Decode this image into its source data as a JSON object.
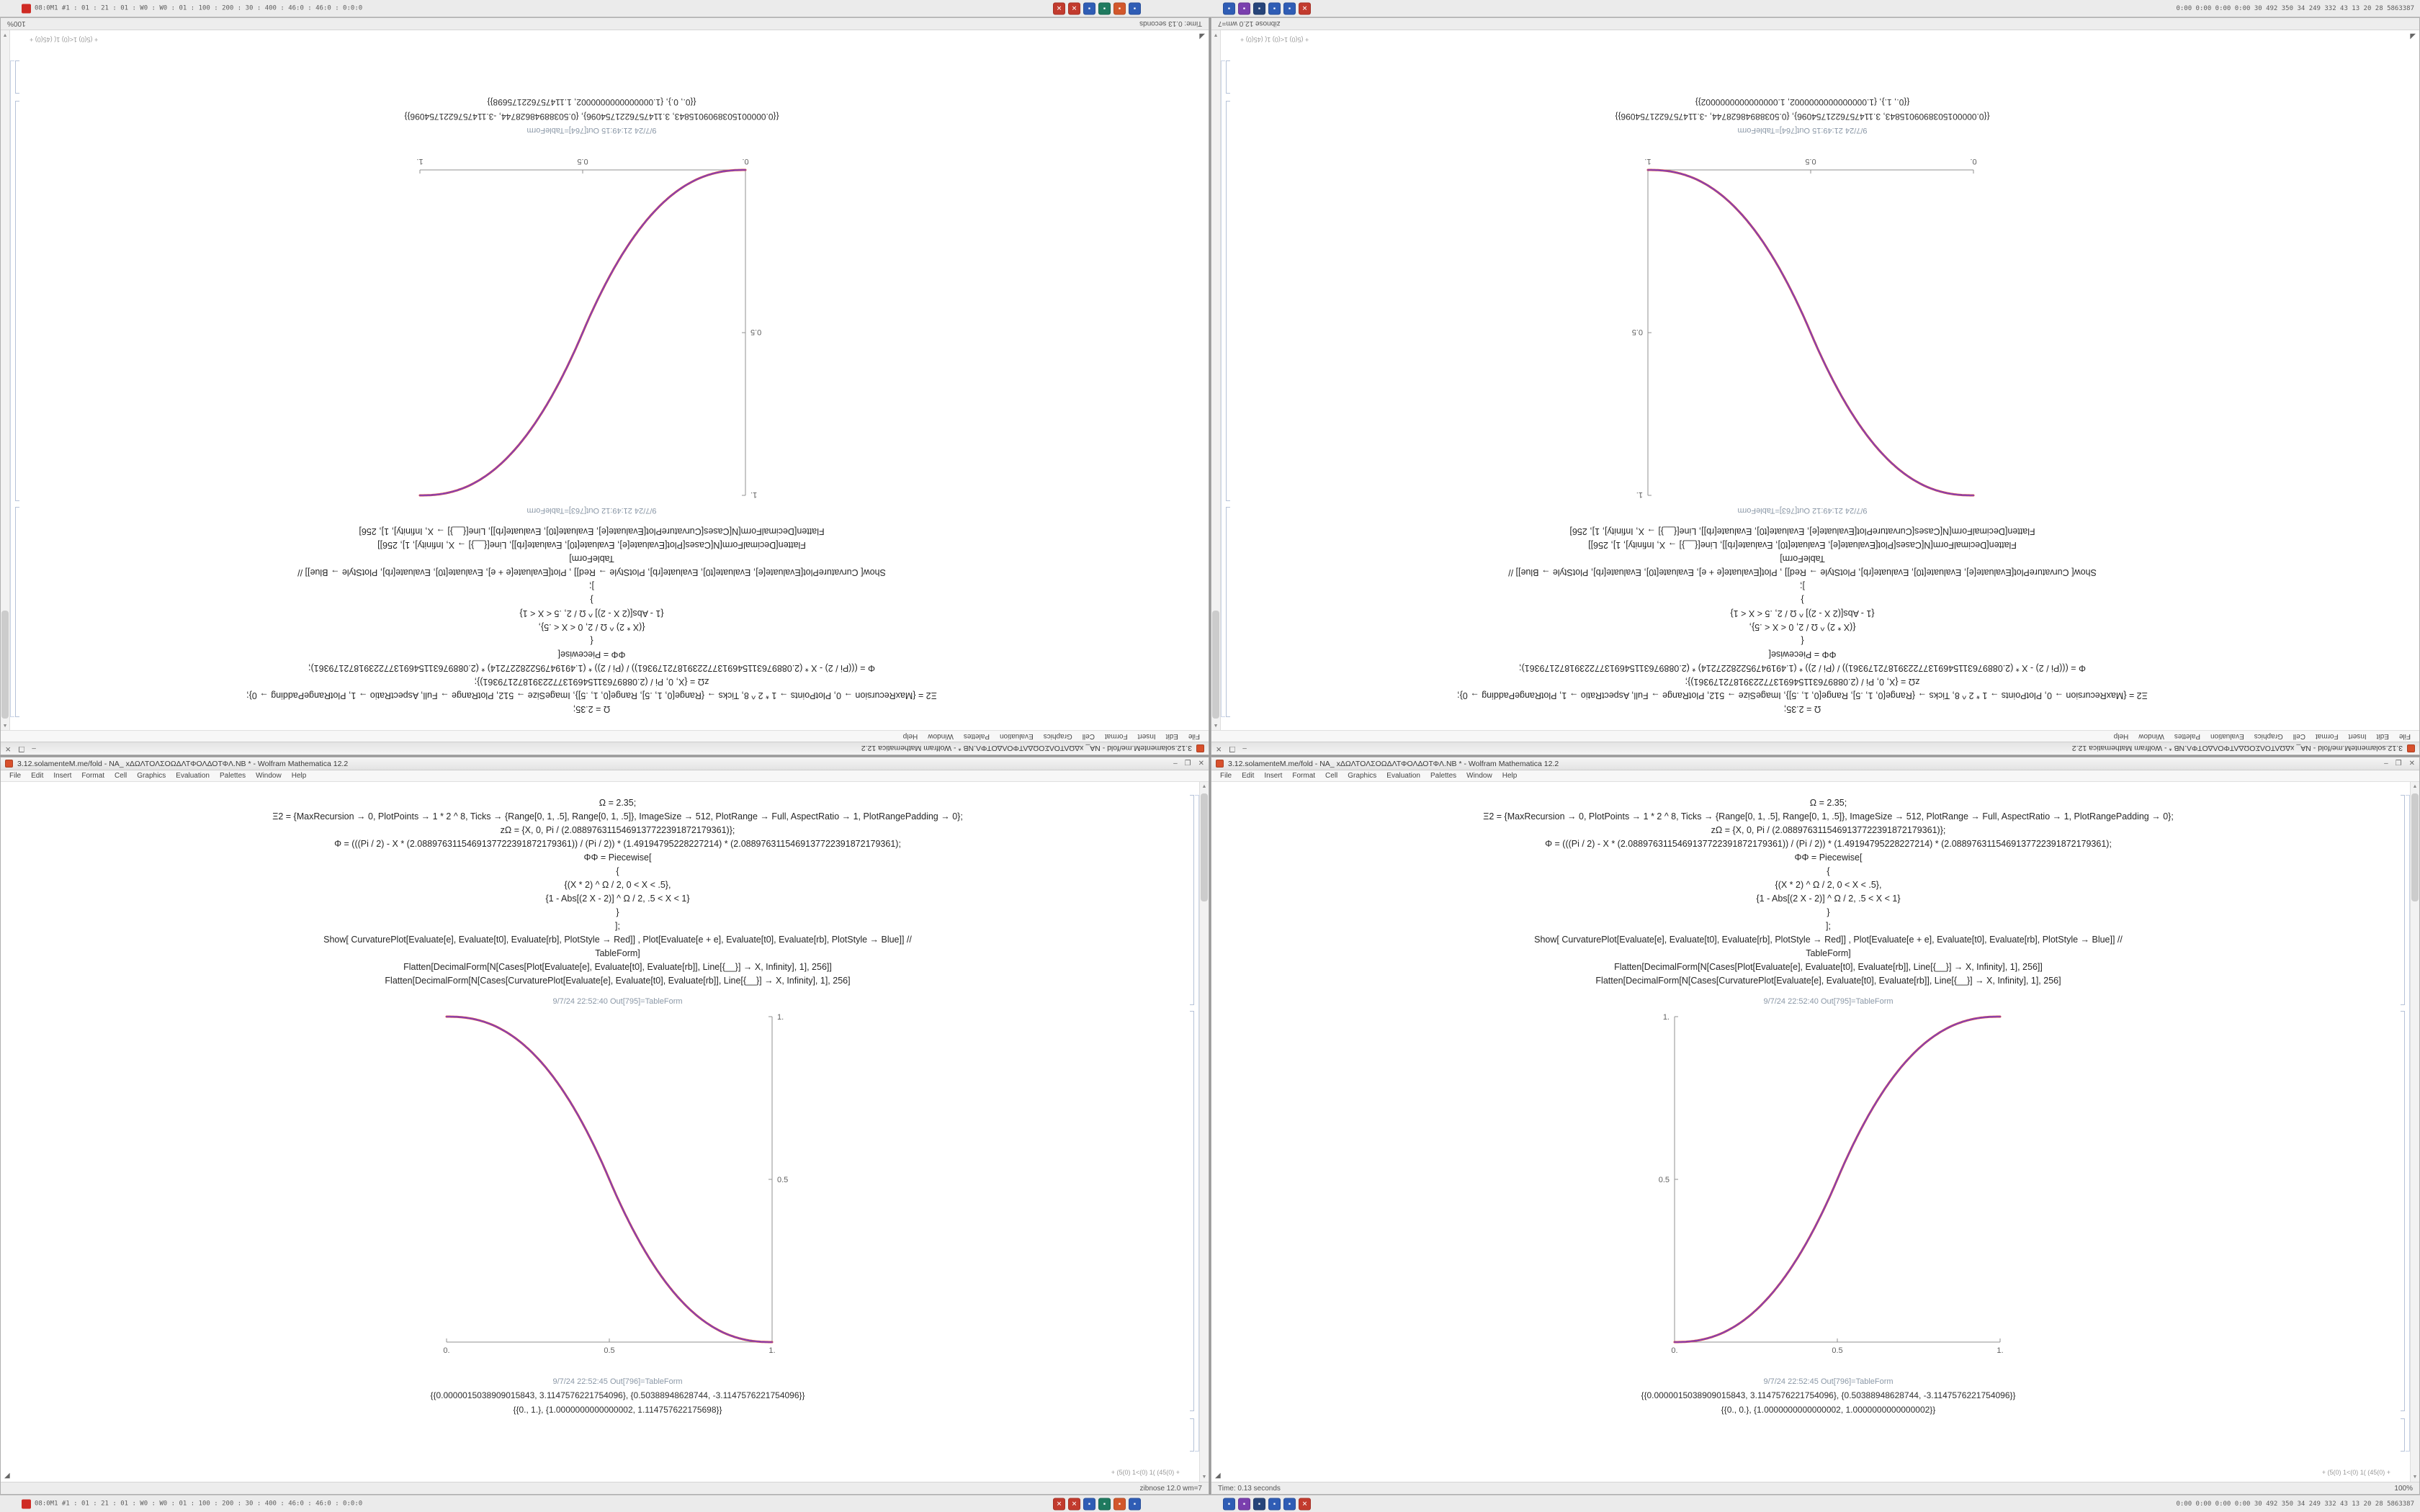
{
  "taskbar": {
    "left_text": "08:0M1 #1 : 01 : 21 : 01 : W0 : W0 : 01 : 100 : 200 : 30 : 400 : 46:0 : 46:0 : 0:0:0",
    "right_text": "0:00 0:00 0:00 0:00 30 492 350 34 249 332 43 13 20 28 5863387",
    "indicator_color": "#cf2b24",
    "icon_groups": [
      [
        {
          "name": "app-icon-red-1",
          "color": "#c23b2e",
          "glyph": "✕"
        },
        {
          "name": "app-icon-red-2",
          "color": "#c23b2e",
          "glyph": "✕"
        },
        {
          "name": "app-icon-blue-1",
          "color": "#2f5db5",
          "glyph": "▪"
        },
        {
          "name": "app-icon-teal",
          "color": "#1f7a5f",
          "glyph": "▪"
        },
        {
          "name": "app-icon-orange",
          "color": "#d2572b",
          "glyph": "▪"
        },
        {
          "name": "app-icon-blue-2",
          "color": "#2f5db5",
          "glyph": "▪"
        }
      ],
      [
        {
          "name": "app-icon-blue-3",
          "color": "#2f5db5",
          "glyph": "▪"
        },
        {
          "name": "app-icon-purple",
          "color": "#7a3fae",
          "glyph": "▪"
        },
        {
          "name": "app-icon-navy",
          "color": "#27457a",
          "glyph": "▪"
        },
        {
          "name": "app-icon-blue-4",
          "color": "#2f5db5",
          "glyph": "▪"
        },
        {
          "name": "app-icon-blue-5",
          "color": "#2f5db5",
          "glyph": "▪"
        },
        {
          "name": "app-icon-red-3",
          "color": "#c23b2e",
          "glyph": "✕"
        }
      ]
    ]
  },
  "common": {
    "title": "3.12.solamenteM.me/fold - NA_ xΔΩΛΤΟΛΣΟΩΔΛΤΦΟΛΔΟΤΦΛ.NB * - Wolfram Mathematica 12.2",
    "menu": [
      "File",
      "Edit",
      "Insert",
      "Format",
      "Cell",
      "Graphics",
      "Evaluation",
      "Palettes",
      "Window",
      "Help"
    ],
    "controls": {
      "min": "–",
      "max": "❐",
      "close": "✕"
    },
    "glyphs": {
      "up": "▲",
      "down": "▼",
      "resize": "◢"
    },
    "corner_note": "+ (5(0) 1<(0) 1( (45(0) +",
    "code_lines": [
      "Ω = 2.35;",
      "Ξ2 = {MaxRecursion → 0, PlotPoints → 1 * 2 ^ 8, Ticks → {Range[0, 1, .5], Range[0, 1, .5]}, ImageSize → 512, PlotRange → Full, AspectRatio → 1, PlotRangePadding → 0};",
      "zΩ = {X, 0, Pi / (2.0889763115469137722391872179361)};",
      "Φ = (((Pi / 2) - X * (2.0889763115469137722391872179361)) / (Pi / 2)) * (1.49194795228227214) * (2.0889763115469137722391872179361);",
      "ΦΦ = Piecewise[",
      "{",
      "{(X * 2) ^ Ω / 2, 0 < X < .5},",
      "{1 - Abs[(2 X - 2)] ^ Ω / 2, .5 < X < 1}",
      "}",
      "];",
      "Show[ CurvaturePlot[Evaluate[e], Evaluate[t0], Evaluate[rb], PlotStyle → Red]] , Plot[Evaluate[e + e], Evaluate[t0], Evaluate[rb], PlotStyle → Blue]] //",
      "TableForm]",
      "Flatten[DecimalForm[N[Cases[Plot[Evaluate[e], Evaluate[t0], Evaluate[rb]], Line[{__}] → X, Infinity], 1], 256]]",
      "Flatten[DecimalForm[N[Cases[CurvaturePlot[Evaluate[e], Evaluate[t0], Evaluate[rb]], Line[{__}] → X, Infinity], 1], 256]"
    ]
  },
  "windows": [
    {
      "id": "top-left",
      "rotated": true,
      "variant": "ascending",
      "out_label_top": "9/7/24 21:49:12 Out[763]=TableForm",
      "out_label_bottom": "9/7/24 21:49:15 Out[764]=TableForm",
      "result1": "{{0.0000015038909015843, 3.1147576221754096}, {0.50388948628744, -3.1147576221754096}}",
      "result2": "{{0., 0.}, {1.0000000000000002, 1.114757622175698}}",
      "status_left": "Time: 0.13 seconds",
      "status_right": "100%"
    },
    {
      "id": "top-right",
      "rotated": true,
      "variant": "descending",
      "out_label_top": "9/7/24 21:49:12 Out[763]=TableForm",
      "out_label_bottom": "9/7/24 21:49:15 Out[764]=TableForm",
      "result1": "{{0.0000015038909015843, 3.1147576221754096}, {0.50388948628744, -3.1147576221754096}}",
      "result2": "{{0., 1.}, {1.0000000000000002, 1.0000000000000002}}",
      "status_left": "",
      "status_right": "zibnose 12.0 wm=7"
    },
    {
      "id": "bottom-left",
      "rotated": false,
      "variant": "descending",
      "out_label_top": "9/7/24 22:52:40 Out[795]=TableForm",
      "out_label_bottom": "9/7/24 22:52:45 Out[796]=TableForm",
      "result1": "{{0.0000015038909015843, 3.1147576221754096}, {0.50388948628744, -3.1147576221754096}}",
      "result2": "{{0., 1.}, {1.0000000000000002, 1.114757622175698}}",
      "status_left": "",
      "status_right": "zibnose 12.0 wm=7"
    },
    {
      "id": "bottom-right",
      "rotated": false,
      "variant": "ascending",
      "out_label_top": "9/7/24 22:52:40 Out[795]=TableForm",
      "out_label_bottom": "9/7/24 22:52:45 Out[796]=TableForm",
      "result1": "{{0.0000015038909015843, 3.1147576221754096}, {0.50388948628744, -3.1147576221754096}}",
      "result2": "{{0., 0.}, {1.0000000000000002, 1.0000000000000002}}",
      "status_left": "Time: 0.13 seconds",
      "status_right": "100%"
    }
  ],
  "chart_data": {
    "ascending": {
      "type": "line",
      "title": "",
      "xlabel": "",
      "ylabel": "",
      "direction": "ascending",
      "omega": 2.35,
      "axes_side": "left",
      "x": [
        0,
        0.1,
        0.2,
        0.3,
        0.4,
        0.5,
        0.6,
        0.7,
        0.8,
        0.9,
        1
      ],
      "values": [
        0,
        0.011,
        0.058,
        0.151,
        0.296,
        0.5,
        0.704,
        0.849,
        0.942,
        0.989,
        1
      ],
      "x_ticks": [
        "0.",
        "0.5",
        "1."
      ],
      "x_tick_pos": [
        0,
        0.5,
        1
      ],
      "y_ticks": [
        "0.5",
        "1."
      ],
      "y_tick_pos": [
        0.5,
        1
      ],
      "xlim": [
        0,
        1
      ],
      "ylim": [
        0,
        1
      ],
      "grid": false,
      "curve_colors": [
        "#d1484a",
        "#7b3fc4"
      ]
    },
    "descending": {
      "type": "line",
      "title": "",
      "xlabel": "",
      "ylabel": "",
      "direction": "descending",
      "omega": 2.35,
      "axes_side": "right",
      "x": [
        0,
        0.1,
        0.2,
        0.3,
        0.4,
        0.5,
        0.6,
        0.7,
        0.8,
        0.9,
        1
      ],
      "values": [
        1,
        0.989,
        0.942,
        0.849,
        0.704,
        0.5,
        0.296,
        0.151,
        0.058,
        0.011,
        0
      ],
      "x_ticks": [
        "0.",
        "0.5",
        "1."
      ],
      "x_tick_pos": [
        0,
        0.5,
        1
      ],
      "y_ticks": [
        "0.5",
        "1."
      ],
      "y_tick_pos": [
        0.5,
        1
      ],
      "xlim": [
        0,
        1
      ],
      "ylim": [
        0,
        1
      ],
      "grid": false,
      "curve_colors": [
        "#d1484a",
        "#7b3fc4"
      ]
    }
  }
}
